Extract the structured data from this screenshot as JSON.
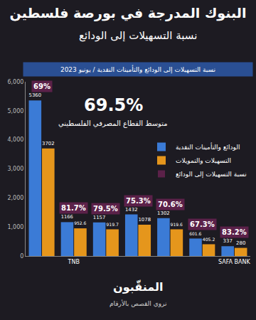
{
  "chart_data": {
    "type": "bar",
    "title": "البنوك المدرجة في بورصة فلسطين",
    "subtitle": "نسبة التسهيلات إلى الودائع",
    "header": "نسبة التسهيلات إلى الودائع والتأمينات النقدية / يونيو 2023",
    "categories": [
      null,
      "TNB",
      null,
      null,
      null,
      null,
      "SAFA BANK"
    ],
    "series": [
      {
        "name": "الودائع والتأمينات النقدية",
        "color": "#3b7bd6",
        "values": [
          5360,
          1166,
          1157,
          1432,
          1302,
          601.6,
          337
        ]
      },
      {
        "name": "التسهيلات والتمويلات",
        "color": "#e5961c",
        "values": [
          3702,
          952.6,
          919.7,
          1078,
          919.6,
          405.2,
          280
        ]
      }
    ],
    "ratios": {
      "name": "نسبة التسهيلات إلى الودائع",
      "color": "#5b2149",
      "labels": [
        "69%",
        "81.7%",
        "79.5%",
        "75.3%",
        "70.6%",
        "67.3%",
        "83.2%"
      ]
    },
    "average": {
      "label": "69.5%",
      "text": "متوسط القطاع المصرفي الفلسطيني"
    },
    "ylim": [
      0,
      6000
    ],
    "yticks": [
      0,
      {
        "value": 1000,
        "label": "1,000"
      },
      {
        "value": 2000,
        "label": "2,000"
      },
      {
        "value": 3000,
        "label": "3,000"
      },
      {
        "value": 4000,
        "label": "4,000"
      },
      {
        "value": 5000,
        "label": "5,000"
      },
      {
        "value": 6000,
        "label": "6,000"
      }
    ],
    "grid": false,
    "data_labels": true,
    "legend": "right",
    "footer": {
      "brand": "المنقّبون",
      "tagline": "نروي القصص بالأرقام"
    }
  }
}
